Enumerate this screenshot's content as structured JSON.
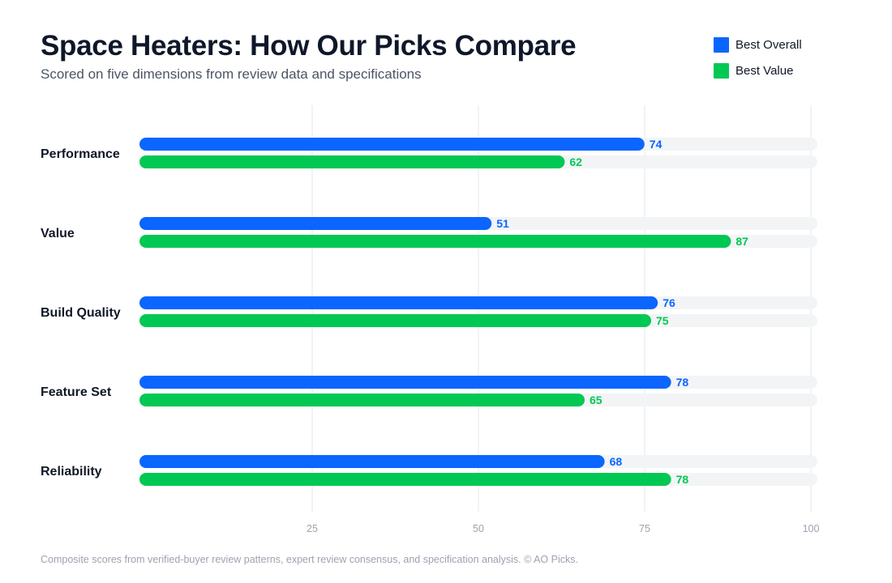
{
  "title": "Space Heaters: How Our Picks Compare",
  "subtitle": "Scored on five dimensions from review data and specifications",
  "footnote": "Composite scores from verified-buyer review patterns, expert review consensus, and specification analysis. © AO Picks.",
  "colors": {
    "best_overall": "#0a66ff",
    "best_value": "#00c853",
    "track": "#f3f4f6",
    "grid": "#e5e7eb",
    "tick_text": "#9ca3af",
    "category_text": "#111827"
  },
  "chart_data": {
    "type": "bar",
    "orientation": "horizontal",
    "categories": [
      "Performance",
      "Value",
      "Build Quality",
      "Feature Set",
      "Reliability"
    ],
    "series": [
      {
        "name": "Best Overall",
        "color": "#0a66ff",
        "values": [
          74,
          51,
          76,
          78,
          68
        ]
      },
      {
        "name": "Best Value",
        "color": "#00c853",
        "values": [
          62,
          87,
          75,
          65,
          78
        ]
      }
    ],
    "xlim": [
      0,
      100
    ],
    "xticks": [
      25,
      50,
      75,
      100
    ],
    "grid": true,
    "legend_position": "top-right",
    "data_labels": true
  }
}
